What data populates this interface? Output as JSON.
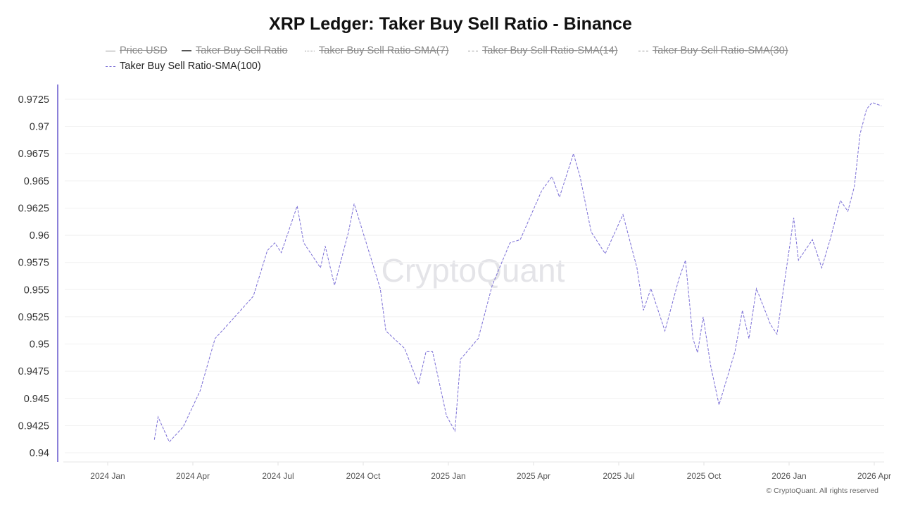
{
  "chart_data": {
    "type": "line",
    "title": "XRP Ledger: Taker Buy Sell Ratio - Binance",
    "legend": [
      {
        "name": "Price USD",
        "hidden": true,
        "style": "solid"
      },
      {
        "name": "Taker Buy Sell Ratio",
        "hidden": true,
        "style": "solid"
      },
      {
        "name": "Taker Buy Sell Ratio-SMA(7)",
        "hidden": true,
        "style": "dotted"
      },
      {
        "name": "Taker Buy Sell Ratio-SMA(14)",
        "hidden": true,
        "style": "dashed"
      },
      {
        "name": "Taker Buy Sell Ratio-SMA(30)",
        "hidden": true,
        "style": "dashed"
      },
      {
        "name": "Taker Buy Sell Ratio-SMA(100)",
        "hidden": false,
        "style": "dashed"
      }
    ],
    "legend_placement": "top",
    "x_ticks": [
      "2024 Jan",
      "2024 Apr",
      "2024 Jul",
      "2024 Oct",
      "2025 Jan",
      "2025 Apr",
      "2025 Jul",
      "2025 Oct",
      "2026 Jan",
      "2026 Apr"
    ],
    "y_ticks": [
      "0.94",
      "0.9425",
      "0.945",
      "0.9475",
      "0.95",
      "0.9525",
      "0.955",
      "0.9575",
      "0.96",
      "0.9625",
      "0.965",
      "0.9675",
      "0.97",
      "0.9725"
    ],
    "ylim": [
      0.94,
      0.9725
    ],
    "grid": "horizontal",
    "series": [
      {
        "name": "Taker Buy Sell Ratio-SMA(100)",
        "color": "#7b6fd6",
        "x": [
          "2024-02-20",
          "2024-02-24",
          "2024-03-07",
          "2024-03-22",
          "2024-04-09",
          "2024-04-25",
          "2024-05-13",
          "2024-06-05",
          "2024-06-20",
          "2024-06-28",
          "2024-07-05",
          "2024-07-22",
          "2024-07-29",
          "2024-08-16",
          "2024-08-21",
          "2024-08-31",
          "2024-09-15",
          "2024-09-21",
          "2024-10-04",
          "2024-10-19",
          "2024-10-25",
          "2024-11-14",
          "2024-11-29",
          "2024-12-07",
          "2024-12-14",
          "2024-12-29",
          "2025-01-07",
          "2025-01-13",
          "2025-02-01",
          "2025-02-16",
          "2025-03-07",
          "2025-03-18",
          "2025-04-10",
          "2025-04-21",
          "2025-04-29",
          "2025-05-14",
          "2025-05-21",
          "2025-06-02",
          "2025-06-17",
          "2025-07-06",
          "2025-07-21",
          "2025-07-28",
          "2025-08-05",
          "2025-08-20",
          "2025-09-04",
          "2025-09-11",
          "2025-09-19",
          "2025-09-24",
          "2025-09-30",
          "2025-10-08",
          "2025-10-17",
          "2025-11-03",
          "2025-11-11",
          "2025-11-18",
          "2025-11-26",
          "2025-12-11",
          "2025-12-18",
          "2026-01-05",
          "2026-01-10",
          "2026-01-25",
          "2026-02-04",
          "2026-02-13",
          "2026-02-24",
          "2026-03-04",
          "2026-03-11",
          "2026-03-17",
          "2026-03-24",
          "2026-03-30",
          "2026-04-09"
        ],
        "values": [
          0.9412,
          0.9433,
          0.941,
          0.9424,
          0.9457,
          0.9505,
          0.9522,
          0.9544,
          0.9586,
          0.9593,
          0.9584,
          0.9627,
          0.9593,
          0.957,
          0.959,
          0.9554,
          0.9603,
          0.9629,
          0.9593,
          0.9551,
          0.9512,
          0.9496,
          0.9463,
          0.9493,
          0.9493,
          0.9434,
          0.942,
          0.9486,
          0.9505,
          0.9554,
          0.9593,
          0.9596,
          0.9641,
          0.9654,
          0.9635,
          0.9675,
          0.9654,
          0.9603,
          0.9583,
          0.9619,
          0.957,
          0.9531,
          0.9551,
          0.9512,
          0.956,
          0.9577,
          0.9505,
          0.9492,
          0.9525,
          0.948,
          0.9444,
          0.9493,
          0.9531,
          0.9505,
          0.9551,
          0.9518,
          0.9509,
          0.9616,
          0.9577,
          0.9596,
          0.957,
          0.9596,
          0.9632,
          0.9622,
          0.9645,
          0.9693,
          0.9716,
          0.9722,
          0.9719
        ]
      }
    ]
  },
  "watermark": "CryptoQuant",
  "copyright": "© CryptoQuant. All rights reserved"
}
